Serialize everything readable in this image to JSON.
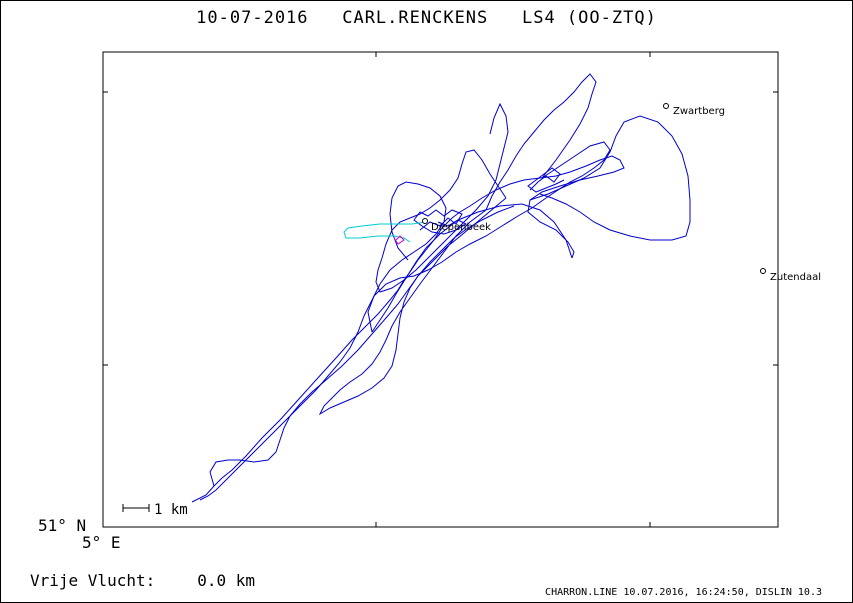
{
  "title": "10-07-2016   CARL.RENCKENS   LS4 (OO-ZTQ)",
  "axes": {
    "lat_label": "51° N",
    "lon_label": "5° E"
  },
  "scale_bar": {
    "label": "1 km"
  },
  "places": [
    {
      "name": "Zwartberg"
    },
    {
      "name": "Zutendaal"
    },
    {
      "name": "Diepenbeek"
    }
  ],
  "colors": {
    "track": "#0000cc",
    "launch_track": "#00cccc",
    "release_marker": "#cc00cc",
    "frame": "#000000"
  },
  "free_flight": {
    "label": "Vrije Vlucht:",
    "value": "0.0 km"
  },
  "footer": "CHARRON.LINE 10.07.2016, 16:24:50, DISLIN 10.3"
}
